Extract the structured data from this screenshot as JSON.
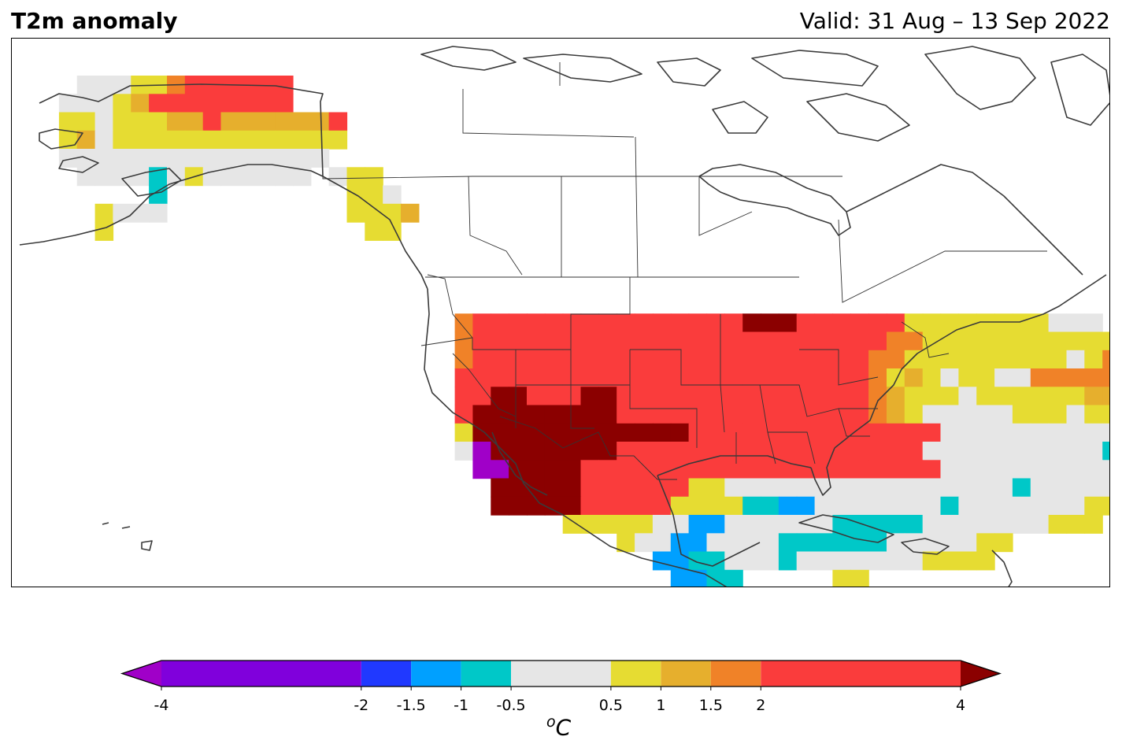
{
  "header": {
    "title": "T2m anomaly",
    "valid": "Valid: 31 Aug – 13 Sep 2022"
  },
  "map": {
    "region": "North America",
    "projection": "Plate Carree",
    "variable": "2 m temperature anomaly",
    "period": "31 Aug – 13 Sep 2022",
    "features": [
      "coastlines",
      "country borders",
      "US state borders",
      "Canadian province borders"
    ]
  },
  "colorbar": {
    "unit_base": "C",
    "unit_sup": "o",
    "bounds": [
      -4,
      -2,
      -1.5,
      -1,
      -0.5,
      0.5,
      1,
      1.5,
      2,
      4
    ],
    "tick_labels": [
      "-4",
      "-2",
      "-1.5",
      "-1",
      "-0.5",
      "0.5",
      "1",
      "1.5",
      "2",
      "4"
    ],
    "colors": [
      "#8000dc",
      "#2039ff",
      "#00a0ff",
      "#00c8c8",
      "#e6e6e6",
      "#e6dc32",
      "#e6af2d",
      "#f08228",
      "#fa3c3c"
    ],
    "under_color": "#a000c8",
    "over_color": "#8b0000",
    "extend": "both"
  },
  "anomaly_regions": [
    {
      "area": "Alaska interior and west coast",
      "category": "0.5 to 1"
    },
    {
      "area": "Northern Alaska / North Slope",
      "category": "2 to 4"
    },
    {
      "area": "Southwest Alaska",
      "category": "-0.5 to 0.5"
    },
    {
      "area": "Southeast Alaska",
      "category": "0.5 to 1"
    },
    {
      "area": "US Northwest and northern Rockies",
      "category": "2 to 4"
    },
    {
      "area": "California Central Valley, Nevada, Utah",
      "category": "> 4"
    },
    {
      "area": "Southern California coast",
      "category": "< -4"
    },
    {
      "area": "Arizona and New Mexico",
      "category": "2 to 4"
    },
    {
      "area": "Northern Plains",
      "category": "1 to 2"
    },
    {
      "area": "Central and southern Plains",
      "category": "-0.5 to 0.5"
    },
    {
      "area": "Texas",
      "category": "-1.5 to -0.5"
    },
    {
      "area": "Mississippi Valley",
      "category": "-1 to -0.5"
    },
    {
      "area": "Great Lakes",
      "category": "0.5 to 1.5"
    },
    {
      "area": "Northeast US",
      "category": "1 to 2"
    },
    {
      "area": "Mid-Atlantic and Southeast coast",
      "category": "0.5 to 1"
    },
    {
      "area": "Florida",
      "category": "0.5 to 1.5"
    }
  ]
}
